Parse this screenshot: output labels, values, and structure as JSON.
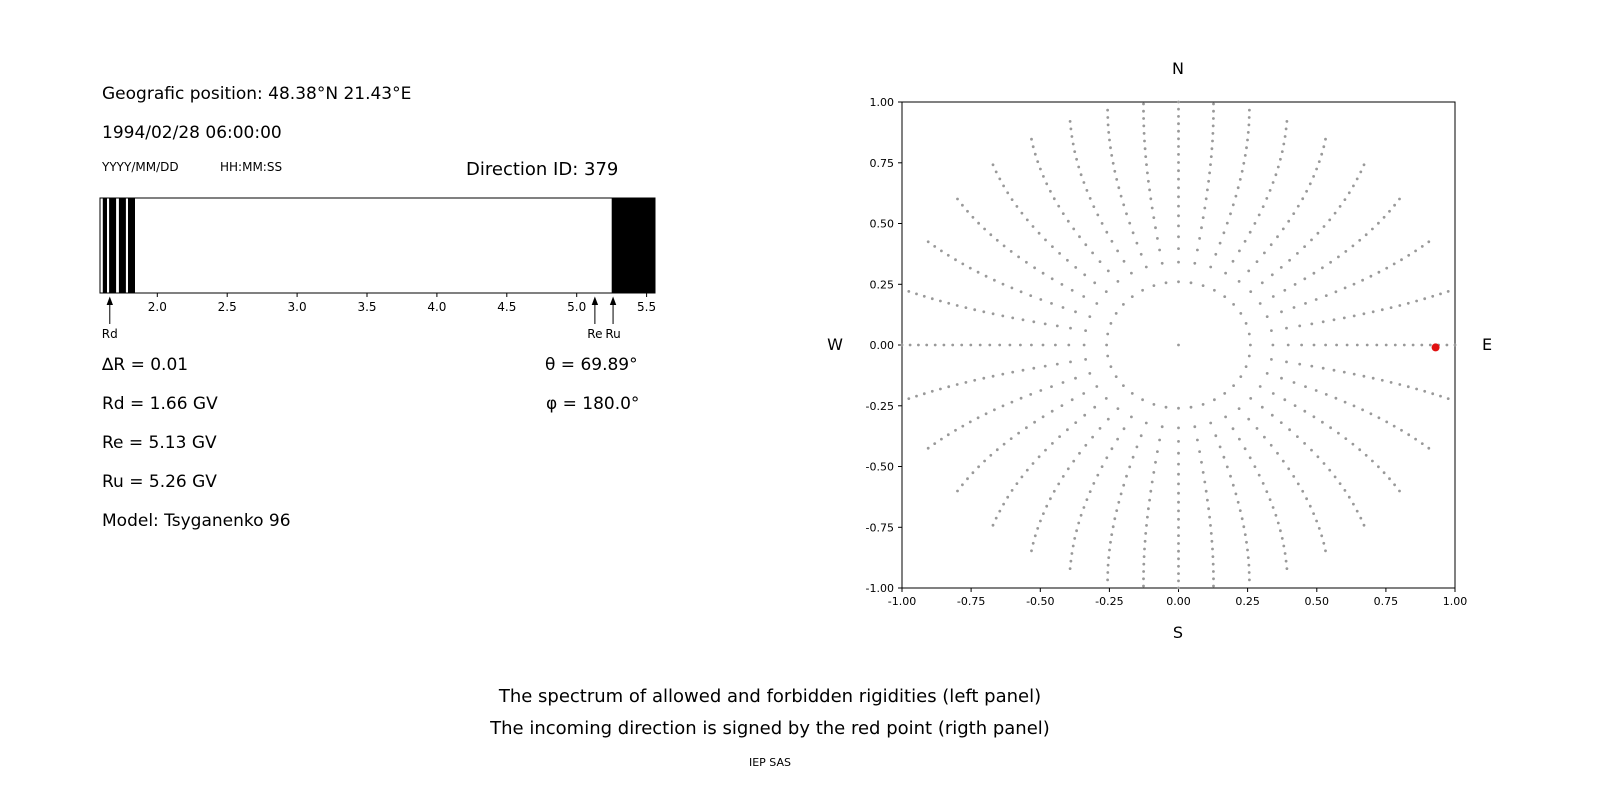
{
  "header": {
    "geo_position": "Geografic position: 48.38°N 21.43°E",
    "datetime": "1994/02/28 06:00:00",
    "date_format_label": "YYYY/MM/DD",
    "time_format_label": "HH:MM:SS",
    "direction_id_label": "Direction ID: 379"
  },
  "annotations": {
    "delta_r": "∆R = 0.01",
    "rd": "Rd = 1.66 GV",
    "re": "Re = 5.13 GV",
    "ru": "Ru = 5.26 GV",
    "model": "Model: Tsyganenko 96",
    "theta": "θ = 69.89°",
    "phi": "φ = 180.0°"
  },
  "compass": {
    "north": "N",
    "south": "S",
    "east": "E",
    "west": "W"
  },
  "caption": {
    "line1": "The spectrum of allowed and forbidden rigidities (left panel)",
    "line2": "The incoming direction is signed by the red point (rigth panel)",
    "credit": "IEP SAS"
  },
  "chart_data": [
    {
      "name": "rigidity-spectrum",
      "type": "bar",
      "title": "",
      "x_range": [
        1.59,
        5.56
      ],
      "x_ticks": [
        2.0,
        2.5,
        3.0,
        3.5,
        4.0,
        4.5,
        5.0,
        5.5
      ],
      "bar_color": "#000000",
      "forbidden_intervals": [
        [
          1.61,
          1.64
        ],
        [
          1.655,
          1.705
        ],
        [
          1.725,
          1.775
        ],
        [
          1.79,
          1.84
        ],
        [
          5.25,
          5.56
        ]
      ],
      "markers": [
        {
          "label": "Rd",
          "x": 1.66
        },
        {
          "label": "Re",
          "x": 5.13
        },
        {
          "label": "Ru",
          "x": 5.26
        }
      ],
      "cutoffs": {
        "delta_R": 0.01,
        "Rd_GV": 1.66,
        "Re_GV": 5.13,
        "Ru_GV": 5.26
      }
    },
    {
      "name": "incoming-direction",
      "type": "scatter",
      "xlim": [
        -1,
        1
      ],
      "ylim": [
        -1,
        1
      ],
      "x_ticks": [
        -1,
        -0.75,
        -0.5,
        -0.25,
        0,
        0.25,
        0.5,
        0.75,
        1
      ],
      "y_ticks": [
        -1,
        -0.75,
        -0.5,
        -0.25,
        0,
        0.25,
        0.5,
        0.75,
        1
      ],
      "compass": {
        "top": "N",
        "bottom": "S",
        "left": "W",
        "right": "E"
      },
      "dots": {
        "color": "#999999",
        "radius": 1.4,
        "spoke_count": 36,
        "r_inner": 0.26,
        "r_outer": 1.0,
        "points_per_spoke": 20,
        "curvature_deg": 8,
        "density_exponent": 0.75
      },
      "center_dot": {
        "x": 0.0,
        "y": 0.0
      },
      "red_point": {
        "x": 0.93,
        "y": -0.01,
        "color": "#e01010",
        "radius": 4
      },
      "theta_deg": 69.89,
      "phi_deg": 180.0
    }
  ]
}
